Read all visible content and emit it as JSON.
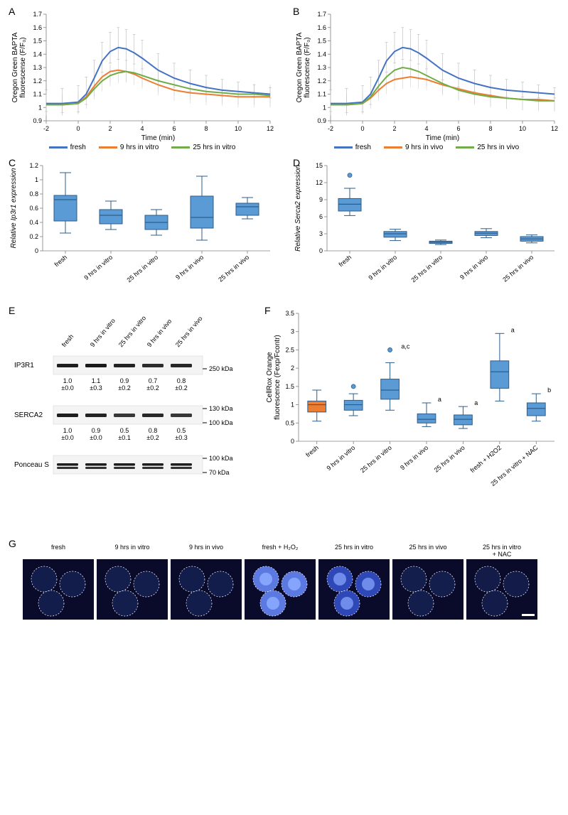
{
  "panelA": {
    "label": "A",
    "ylabel": "Oregon Green BAPTA\nfluorescense (F/F₀)",
    "xlabel": "Time (min)",
    "xlim": [
      -2,
      12
    ],
    "xticks": [
      -2,
      0,
      2,
      4,
      6,
      8,
      10,
      12
    ],
    "ylim": [
      0.9,
      1.7
    ],
    "yticks": [
      0.9,
      1,
      1.1,
      1.2,
      1.3,
      1.4,
      1.5,
      1.6,
      1.7
    ],
    "series": [
      {
        "name": "fresh",
        "color": "#4472c4",
        "x": [
          -2,
          -1,
          0,
          0.5,
          1,
          1.5,
          2,
          2.5,
          3,
          3.5,
          4,
          5,
          6,
          7,
          8,
          9,
          10,
          11,
          12
        ],
        "y": [
          1.03,
          1.03,
          1.04,
          1.1,
          1.22,
          1.35,
          1.42,
          1.45,
          1.44,
          1.41,
          1.37,
          1.28,
          1.22,
          1.18,
          1.15,
          1.13,
          1.12,
          1.11,
          1.1
        ]
      },
      {
        "name": "9 hrs in vitro",
        "color": "#ed7d31",
        "x": [
          -2,
          -1,
          0,
          0.5,
          1,
          1.5,
          2,
          2.5,
          3,
          3.5,
          4,
          5,
          6,
          7,
          8,
          9,
          10,
          11,
          12
        ],
        "y": [
          1.02,
          1.02,
          1.03,
          1.08,
          1.16,
          1.23,
          1.27,
          1.28,
          1.27,
          1.25,
          1.22,
          1.17,
          1.13,
          1.11,
          1.1,
          1.09,
          1.08,
          1.08,
          1.08
        ]
      },
      {
        "name": "25 hrs in vitro",
        "color": "#70ad47",
        "x": [
          -2,
          -1,
          0,
          0.5,
          1,
          1.5,
          2,
          2.5,
          3,
          3.5,
          4,
          5,
          6,
          7,
          8,
          9,
          10,
          11,
          12
        ],
        "y": [
          1.02,
          1.02,
          1.03,
          1.07,
          1.14,
          1.2,
          1.24,
          1.26,
          1.27,
          1.26,
          1.24,
          1.2,
          1.17,
          1.14,
          1.12,
          1.11,
          1.1,
          1.1,
          1.09
        ]
      }
    ],
    "errorbars": {
      "color": "#b0b0b0",
      "width": 0.5,
      "count": 44,
      "magnitude": 0.15
    }
  },
  "panelB": {
    "label": "B",
    "ylabel": "Oregon Green BAPTA\nfluorescense (F/F₀)",
    "xlabel": "Time (min)",
    "xlim": [
      -2,
      12
    ],
    "xticks": [
      -2,
      0,
      2,
      4,
      6,
      8,
      10,
      12
    ],
    "ylim": [
      0.9,
      1.7
    ],
    "yticks": [
      0.9,
      1,
      1.1,
      1.2,
      1.3,
      1.4,
      1.5,
      1.6,
      1.7
    ],
    "series": [
      {
        "name": "fresh",
        "color": "#4472c4",
        "x": [
          -2,
          -1,
          0,
          0.5,
          1,
          1.5,
          2,
          2.5,
          3,
          3.5,
          4,
          5,
          6,
          7,
          8,
          9,
          10,
          11,
          12
        ],
        "y": [
          1.03,
          1.03,
          1.04,
          1.1,
          1.22,
          1.35,
          1.42,
          1.45,
          1.44,
          1.41,
          1.37,
          1.28,
          1.22,
          1.18,
          1.15,
          1.13,
          1.12,
          1.11,
          1.1
        ]
      },
      {
        "name": "9 hrs in vivo",
        "color": "#ed7d31",
        "x": [
          -2,
          -1,
          0,
          0.5,
          1,
          1.5,
          2,
          2.5,
          3,
          3.5,
          4,
          5,
          6,
          7,
          8,
          9,
          10,
          11,
          12
        ],
        "y": [
          1.02,
          1.02,
          1.03,
          1.07,
          1.13,
          1.18,
          1.21,
          1.22,
          1.23,
          1.22,
          1.21,
          1.17,
          1.14,
          1.11,
          1.09,
          1.07,
          1.06,
          1.06,
          1.05
        ]
      },
      {
        "name": "25 hrs in vivo",
        "color": "#70ad47",
        "x": [
          -2,
          -1,
          0,
          0.5,
          1,
          1.5,
          2,
          2.5,
          3,
          3.5,
          4,
          5,
          6,
          7,
          8,
          9,
          10,
          11,
          12
        ],
        "y": [
          1.02,
          1.02,
          1.03,
          1.08,
          1.16,
          1.23,
          1.28,
          1.3,
          1.29,
          1.27,
          1.24,
          1.18,
          1.13,
          1.1,
          1.08,
          1.07,
          1.06,
          1.05,
          1.05
        ]
      }
    ]
  },
  "legendA": [
    {
      "label": "fresh",
      "color": "#4472c4"
    },
    {
      "label": "9 hrs in vitro",
      "color": "#ed7d31"
    },
    {
      "label": "25 hrs in vitro",
      "color": "#70ad47"
    }
  ],
  "legendB": [
    {
      "label": "fresh",
      "color": "#4472c4"
    },
    {
      "label": "9 hrs in vivo",
      "color": "#ed7d31"
    },
    {
      "label": "25 hrs in vivo",
      "color": "#70ad47"
    }
  ],
  "panelC": {
    "label": "C",
    "ylabel": "Relative Ip3r1 expression",
    "ylim": [
      0,
      1.2
    ],
    "yticks": [
      0,
      0.2,
      0.4,
      0.6,
      0.8,
      1,
      1.2
    ],
    "categories": [
      "fresh",
      "9 hrs in vitro",
      "25 hrs in vitro",
      "9 hrs in vivo",
      "25 hrs in vivo"
    ],
    "boxes": [
      {
        "q1": 0.42,
        "med": 0.72,
        "q3": 0.78,
        "lo": 0.25,
        "hi": 1.1
      },
      {
        "q1": 0.38,
        "med": 0.5,
        "q3": 0.58,
        "lo": 0.3,
        "hi": 0.7
      },
      {
        "q1": 0.3,
        "med": 0.4,
        "q3": 0.5,
        "lo": 0.22,
        "hi": 0.58
      },
      {
        "q1": 0.32,
        "med": 0.47,
        "q3": 0.77,
        "lo": 0.15,
        "hi": 1.05
      },
      {
        "q1": 0.5,
        "med": 0.62,
        "q3": 0.67,
        "lo": 0.45,
        "hi": 0.75
      }
    ],
    "box_color": "#5b9bd5",
    "line_color": "#2e5c8a"
  },
  "panelD": {
    "label": "D",
    "ylabel": "Relative Serca2 expression",
    "ylim": [
      0,
      15
    ],
    "yticks": [
      0,
      3,
      6,
      9,
      12,
      15
    ],
    "categories": [
      "fresh",
      "9 hrs in vitro",
      "25 hrs in vitro",
      "9 hrs in vivo",
      "25 hrs in vivo"
    ],
    "boxes": [
      {
        "q1": 7.0,
        "med": 8.2,
        "q3": 9.2,
        "lo": 6.2,
        "hi": 11.0,
        "outliers": [
          13.3
        ]
      },
      {
        "q1": 2.4,
        "med": 3.0,
        "q3": 3.4,
        "lo": 1.8,
        "hi": 3.8
      },
      {
        "q1": 1.3,
        "med": 1.5,
        "q3": 1.7,
        "lo": 1.1,
        "hi": 1.9
      },
      {
        "q1": 2.7,
        "med": 3.1,
        "q3": 3.4,
        "lo": 2.3,
        "hi": 3.9
      },
      {
        "q1": 1.7,
        "med": 2.1,
        "q3": 2.5,
        "lo": 1.4,
        "hi": 2.8
      }
    ],
    "box_color": "#5b9bd5",
    "line_color": "#2e5c8a"
  },
  "panelE": {
    "label": "E",
    "lane_labels": [
      "fresh",
      "9 hrs in vitro",
      "25 hrs in vitro",
      "9 hrs in vivo",
      "25 hrs in vivo"
    ],
    "rows": [
      {
        "name": "IP3R1",
        "marker": "250 kDa",
        "values": [
          "1.0",
          "1.1",
          "0.9",
          "0.7",
          "0.8"
        ],
        "errs": [
          "±0.0",
          "±0.3",
          "±0.2",
          "±0.2",
          "±0.2"
        ]
      },
      {
        "name": "SERCA2",
        "markers": [
          "130 kDa",
          "100 kDa"
        ],
        "values": [
          "1.0",
          "0.9",
          "0.5",
          "0.8",
          "0.5"
        ],
        "errs": [
          "±0.0",
          "±0.0",
          "±0.1",
          "±0.2",
          "±0.3"
        ]
      },
      {
        "name": "Ponceau S",
        "markers": [
          "100 kDa",
          "70 kDa"
        ]
      }
    ]
  },
  "panelF": {
    "label": "F",
    "ylabel": "CellRox Orange\nfluorescence (Fexp/Fcontr)",
    "ylim": [
      0,
      3.5
    ],
    "yticks": [
      0,
      0.5,
      1.0,
      1.5,
      2.0,
      2.5,
      3.0,
      3.5
    ],
    "categories": [
      "fresh",
      "9 hrs in vitro",
      "25 hrs in vitro",
      "9 hrs in vivo",
      "25 hrs in vivo",
      "fresh + H2O2",
      "25 hrs in vitro + NAC"
    ],
    "boxes": [
      {
        "q1": 0.8,
        "med": 1.0,
        "q3": 1.1,
        "lo": 0.55,
        "hi": 1.4,
        "color": "#ed7d31",
        "sig": ""
      },
      {
        "q1": 0.85,
        "med": 1.0,
        "q3": 1.12,
        "lo": 0.7,
        "hi": 1.3,
        "outliers": [
          1.5
        ],
        "sig": ""
      },
      {
        "q1": 1.15,
        "med": 1.4,
        "q3": 1.7,
        "lo": 0.85,
        "hi": 2.15,
        "outliers": [
          2.5
        ],
        "sig": "a,c"
      },
      {
        "q1": 0.5,
        "med": 0.6,
        "q3": 0.75,
        "lo": 0.4,
        "hi": 1.05,
        "sig": "a"
      },
      {
        "q1": 0.45,
        "med": 0.6,
        "q3": 0.72,
        "lo": 0.35,
        "hi": 0.95,
        "sig": "a"
      },
      {
        "q1": 1.45,
        "med": 1.9,
        "q3": 2.2,
        "lo": 1.1,
        "hi": 2.95,
        "sig": "a"
      },
      {
        "q1": 0.7,
        "med": 0.9,
        "q3": 1.05,
        "lo": 0.55,
        "hi": 1.3,
        "sig": "b"
      }
    ],
    "box_color": "#5b9bd5",
    "line_color": "#2e5c8a"
  },
  "panelG": {
    "label": "G",
    "image_labels": [
      "fresh",
      "9 hrs in vitro",
      "9 hrs in vivo",
      "fresh + H₂O₂",
      "25 hrs in vitro",
      "25 hrs in vivo",
      "25 hrs in vitro\n+ NAC"
    ],
    "bg_color": "#0a0a2a",
    "circle_fill": "#1a2a60",
    "circle_stroke": "#ffffff",
    "bright_fill": "#3a5ae0",
    "brightest_fill": "#6a8aff",
    "scalebar_color": "#ffffff"
  }
}
